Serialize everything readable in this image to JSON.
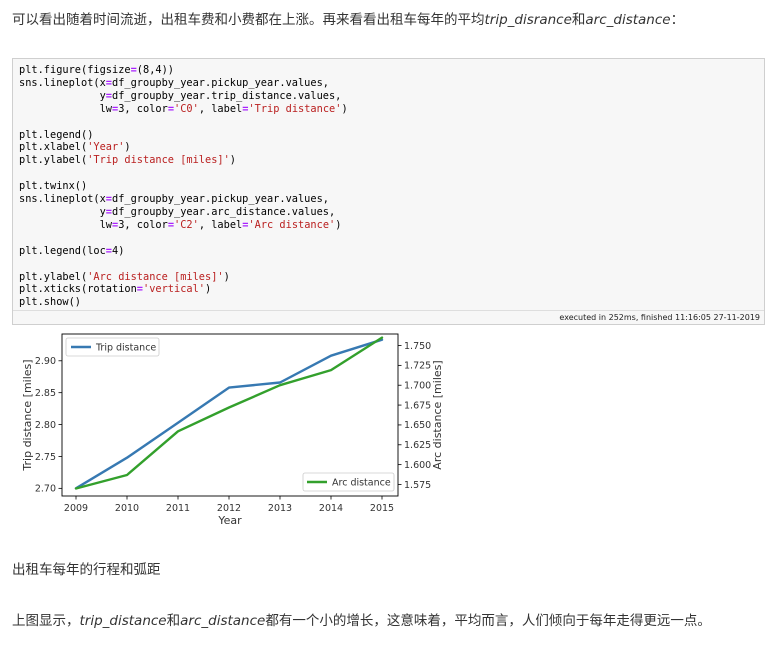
{
  "intro": {
    "text_1": "可以看出随着时间流逝，出租车费和小费都在上涨。再来看看出租车每年的平均",
    "var_1": "trip_disrance",
    "text_2": "和",
    "var_2": "arc_distance",
    "text_3": "："
  },
  "code_cell": {
    "lines": [
      [
        [
          "plt.figure(figsize",
          ""
        ],
        [
          "=",
          "op"
        ],
        [
          "(8,4))",
          ""
        ]
      ],
      [
        [
          "sns.lineplot(x",
          ""
        ],
        [
          "=",
          "op"
        ],
        [
          "df_groupby_year.pickup_year.values,",
          ""
        ]
      ],
      [
        [
          "             y",
          ""
        ],
        [
          "=",
          "op"
        ],
        [
          "df_groupby_year.trip_distance.values,",
          ""
        ]
      ],
      [
        [
          "             lw",
          ""
        ],
        [
          "=",
          "op"
        ],
        [
          "3, color",
          ""
        ],
        [
          "=",
          "op"
        ],
        [
          "'C0'",
          "str"
        ],
        [
          ", label",
          ""
        ],
        [
          "=",
          "op"
        ],
        [
          "'Trip distance'",
          "str"
        ],
        [
          ")",
          ""
        ]
      ],
      [],
      [
        [
          "plt.legend()",
          ""
        ]
      ],
      [
        [
          "plt.xlabel(",
          ""
        ],
        [
          "'Year'",
          "str"
        ],
        [
          ")",
          ""
        ]
      ],
      [
        [
          "plt.ylabel(",
          ""
        ],
        [
          "'Trip distance [miles]'",
          "str"
        ],
        [
          ")",
          ""
        ]
      ],
      [],
      [
        [
          "plt.twinx()",
          ""
        ]
      ],
      [
        [
          "sns.lineplot(x",
          ""
        ],
        [
          "=",
          "op"
        ],
        [
          "df_groupby_year.pickup_year.values,",
          ""
        ]
      ],
      [
        [
          "             y",
          ""
        ],
        [
          "=",
          "op"
        ],
        [
          "df_groupby_year.arc_distance.values,",
          ""
        ]
      ],
      [
        [
          "             lw",
          ""
        ],
        [
          "=",
          "op"
        ],
        [
          "3, color",
          ""
        ],
        [
          "=",
          "op"
        ],
        [
          "'C2'",
          "str"
        ],
        [
          ", label",
          ""
        ],
        [
          "=",
          "op"
        ],
        [
          "'Arc distance'",
          "str"
        ],
        [
          ")",
          ""
        ]
      ],
      [],
      [
        [
          "plt.legend(loc",
          ""
        ],
        [
          "=",
          "op"
        ],
        [
          "4)",
          ""
        ]
      ],
      [],
      [
        [
          "plt.ylabel(",
          ""
        ],
        [
          "'Arc distance [miles]'",
          "str"
        ],
        [
          ")",
          ""
        ]
      ],
      [
        [
          "plt.xticks(rotation",
          ""
        ],
        [
          "=",
          "op"
        ],
        [
          "'vertical'",
          "str"
        ],
        [
          ")",
          ""
        ]
      ],
      [
        [
          "plt.show()",
          ""
        ]
      ]
    ],
    "execution_info": "executed in 252ms, finished 11:16:05 27-11-2019"
  },
  "chart_data": {
    "type": "line",
    "x": [
      2009,
      2010,
      2011,
      2012,
      2013,
      2014,
      2015
    ],
    "xlabel": "Year",
    "series": [
      {
        "name": "Trip distance",
        "axis": "left",
        "color": "#3779b2",
        "values": [
          2.7,
          2.748,
          2.803,
          2.858,
          2.866,
          2.908,
          2.933
        ]
      },
      {
        "name": "Arc distance",
        "axis": "right",
        "color": "#33a02c",
        "values": [
          1.57,
          1.587,
          1.642,
          1.672,
          1.7,
          1.719,
          1.76
        ]
      }
    ],
    "left_axis": {
      "label": "Trip distance [miles]",
      "ylim": [
        2.688,
        2.942
      ],
      "ticks": [
        2.7,
        2.75,
        2.8,
        2.85,
        2.9
      ],
      "tick_labels": [
        "2.70",
        "2.75",
        "2.80",
        "2.85",
        "2.90"
      ]
    },
    "right_axis": {
      "label": "Arc distance [miles]",
      "ylim": [
        1.5605,
        1.7645
      ],
      "ticks": [
        1.575,
        1.6,
        1.625,
        1.65,
        1.675,
        1.7,
        1.725,
        1.75
      ],
      "tick_labels": [
        "1.575",
        "1.600",
        "1.625",
        "1.650",
        "1.675",
        "1.700",
        "1.725",
        "1.750"
      ]
    },
    "legends": [
      {
        "series": "Trip distance",
        "placement": "upper-left"
      },
      {
        "series": "Arc distance",
        "placement": "lower-right"
      }
    ],
    "grid": false
  },
  "caption": "出租车每年的行程和弧距",
  "conclusion": {
    "text_1": "上图显示，",
    "var_1": "trip_distance",
    "text_2": "和",
    "var_2": "arc_distance",
    "text_3": "都有一个小的增长，这意味着，平均而言，人们倾向于每年走得更远一点。"
  }
}
